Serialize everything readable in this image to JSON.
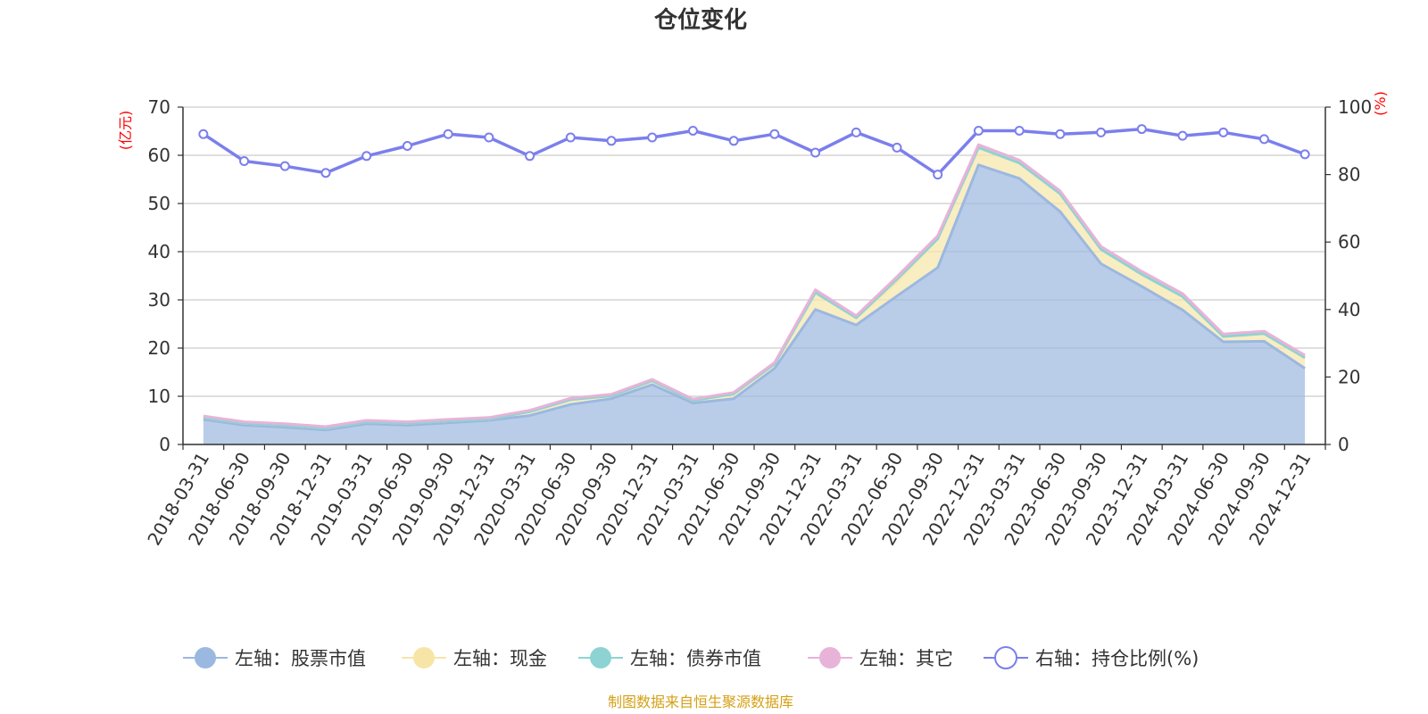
{
  "chart_data": {
    "type": "area",
    "title": "仓位变化",
    "left_axis": {
      "unit": "(亿元)",
      "min": 0,
      "max": 70,
      "ticks": [
        0,
        10,
        20,
        30,
        40,
        50,
        60,
        70
      ]
    },
    "right_axis": {
      "unit": "(%)",
      "min": 0,
      "max": 100,
      "ticks": [
        0,
        20,
        40,
        60,
        80,
        100
      ]
    },
    "categories": [
      "2018-03-31",
      "2018-06-30",
      "2018-09-30",
      "2018-12-31",
      "2019-03-31",
      "2019-06-30",
      "2019-09-30",
      "2019-12-31",
      "2020-03-31",
      "2020-06-30",
      "2020-09-30",
      "2020-12-31",
      "2021-03-31",
      "2021-06-30",
      "2021-09-30",
      "2021-12-31",
      "2022-03-31",
      "2022-06-30",
      "2022-09-30",
      "2022-12-31",
      "2023-03-31",
      "2023-06-30",
      "2023-09-30",
      "2023-12-31",
      "2024-03-31",
      "2024-06-30",
      "2024-09-30",
      "2024-12-31"
    ],
    "series": [
      {
        "name": "左轴：股票市值",
        "axis": "left",
        "color": "#9bb8e0",
        "values": [
          5.2,
          4.0,
          3.6,
          3.0,
          4.3,
          4.0,
          4.5,
          5.0,
          6.0,
          8.3,
          9.5,
          12.4,
          8.6,
          9.5,
          15.8,
          28.0,
          24.8,
          30.8,
          36.7,
          58.0,
          55.2,
          48.3,
          37.5,
          32.8,
          27.9,
          21.3,
          21.4,
          15.8
        ]
      },
      {
        "name": "左轴：现金",
        "axis": "left",
        "color": "#f7e5a8",
        "values": [
          0.4,
          0.4,
          0.4,
          0.4,
          0.4,
          0.4,
          0.4,
          0.3,
          0.8,
          1.0,
          0.6,
          0.8,
          0.5,
          1.0,
          0.9,
          3.5,
          1.5,
          3.0,
          6.0,
          3.6,
          3.2,
          3.7,
          3.0,
          2.5,
          2.8,
          1.1,
          1.6,
          2.2
        ]
      },
      {
        "name": "左轴：债券市值",
        "axis": "left",
        "color": "#8dd3d3",
        "values": [
          0,
          0,
          0,
          0,
          0,
          0,
          0,
          0,
          0,
          0,
          0,
          0,
          0,
          0,
          0,
          0,
          0,
          0.5,
          0,
          0,
          0,
          0,
          0,
          0,
          0,
          0,
          0,
          0
        ]
      },
      {
        "name": "左轴：其它",
        "axis": "left",
        "color": "#e8b3d8",
        "values": [
          0.3,
          0.3,
          0.3,
          0.3,
          0.3,
          0.3,
          0.3,
          0.3,
          0.3,
          0.3,
          0.3,
          0.3,
          0.3,
          0.3,
          0.3,
          0.6,
          0.4,
          0.5,
          0.6,
          0.6,
          0.6,
          0.6,
          0.6,
          0.6,
          0.6,
          0.5,
          0.5,
          0.5
        ]
      },
      {
        "name": "右轴：持仓比例(%)",
        "axis": "right",
        "color": "#7b7fec",
        "values": [
          92,
          84,
          82.5,
          80.5,
          85.5,
          88.5,
          92,
          91,
          85.5,
          91,
          90,
          91,
          93,
          90,
          92,
          86.5,
          92.5,
          88,
          80,
          93,
          93,
          92,
          92.5,
          93.5,
          91.5,
          92.5,
          90.5,
          86
        ]
      }
    ]
  },
  "source_note": "制图数据来自恒生聚源数据库"
}
